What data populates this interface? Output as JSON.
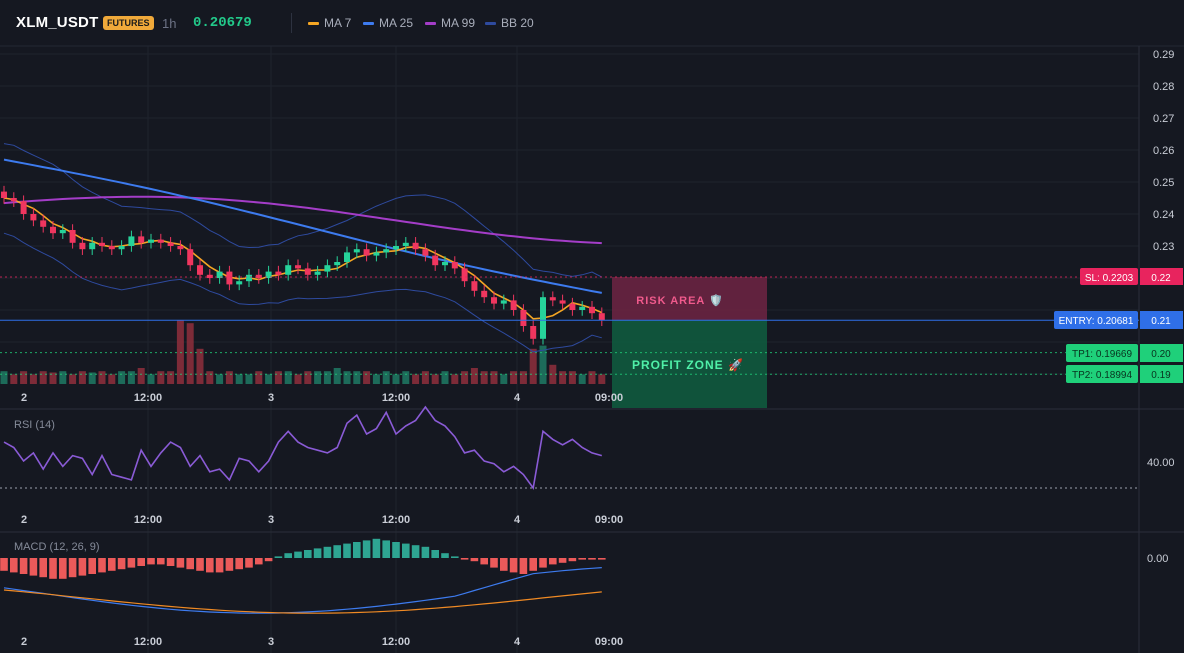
{
  "header": {
    "symbol": "XLM_USDT",
    "badge": "FUTURES",
    "interval": "1h",
    "price": "0.20679",
    "indicators": [
      {
        "label": "MA 7",
        "color": "#f5a623"
      },
      {
        "label": "MA 25",
        "color": "#3d7bef"
      },
      {
        "label": "MA 99",
        "color": "#a43dc8"
      },
      {
        "label": "BB 20",
        "color": "#2e4a9e"
      }
    ]
  },
  "price_axis": {
    "ticks": [
      "0.29",
      "0.28",
      "0.27",
      "0.26",
      "0.25",
      "0.24",
      "0.23",
      "0.22",
      "0.21",
      "0.20",
      "0.19"
    ]
  },
  "levels": {
    "sl": {
      "label": "SL: 0.2203",
      "axis": "0.22",
      "value": 0.2203,
      "color": "#e8245e"
    },
    "entry": {
      "label": "ENTRY: 0.20681",
      "axis": "0.21",
      "value": 0.20681,
      "color": "#2f6fe8"
    },
    "tp1": {
      "label": "TP1: 0.19669",
      "axis": "0.20",
      "value": 0.19669,
      "color": "#1fd07a"
    },
    "tp2": {
      "label": "TP2: 0.18994",
      "axis": "0.19",
      "value": 0.18994,
      "color": "#1fd07a"
    }
  },
  "zones": {
    "risk": "RISK AREA 🛡️",
    "profit": "PROFIT ZONE 🚀"
  },
  "time_axis": [
    "2",
    "12:00",
    "3",
    "12:00",
    "4",
    "09:00"
  ],
  "rsi": {
    "label": "RSI (14)",
    "tick": "40.00"
  },
  "macd": {
    "label": "MACD (12, 26, 9)",
    "tick": "0.00"
  },
  "chart_data": {
    "type": "candlestick",
    "title": "",
    "ylim": [
      0.185,
      0.292
    ],
    "series": [
      {
        "name": "MA 7"
      },
      {
        "name": "MA 25"
      },
      {
        "name": "MA 99"
      },
      {
        "name": "BB 20"
      }
    ],
    "closes": [
      0.245,
      0.244,
      0.24,
      0.238,
      0.236,
      0.234,
      0.235,
      0.231,
      0.229,
      0.231,
      0.23,
      0.229,
      0.23,
      0.233,
      0.231,
      0.232,
      0.231,
      0.23,
      0.229,
      0.224,
      0.221,
      0.22,
      0.222,
      0.218,
      0.219,
      0.221,
      0.22,
      0.222,
      0.221,
      0.224,
      0.223,
      0.221,
      0.222,
      0.224,
      0.225,
      0.228,
      0.229,
      0.227,
      0.228,
      0.229,
      0.23,
      0.231,
      0.229,
      0.227,
      0.224,
      0.225,
      0.223,
      0.219,
      0.216,
      0.214,
      0.212,
      0.213,
      0.21,
      0.205,
      0.201,
      0.214,
      0.213,
      0.212,
      0.21,
      0.211,
      0.209,
      0.2068
    ],
    "volumes": [
      0.2,
      0.15,
      0.2,
      0.15,
      0.2,
      0.18,
      0.2,
      0.15,
      0.2,
      0.18,
      0.2,
      0.15,
      0.2,
      0.2,
      0.25,
      0.15,
      0.2,
      0.2,
      1.0,
      0.95,
      0.55,
      0.2,
      0.15,
      0.2,
      0.15,
      0.15,
      0.2,
      0.15,
      0.2,
      0.2,
      0.15,
      0.2,
      0.2,
      0.2,
      0.25,
      0.2,
      0.2,
      0.2,
      0.15,
      0.2,
      0.15,
      0.2,
      0.15,
      0.2,
      0.15,
      0.2,
      0.15,
      0.2,
      0.25,
      0.2,
      0.2,
      0.15,
      0.2,
      0.2,
      0.55,
      0.6,
      0.3,
      0.2,
      0.2,
      0.15,
      0.2,
      0.15
    ],
    "rsi": [
      47,
      45,
      40,
      43,
      37,
      43,
      38,
      42,
      41,
      35,
      42,
      35,
      34,
      33,
      44,
      38,
      43,
      47,
      45,
      38,
      42,
      36,
      37,
      33,
      41,
      40,
      36,
      40,
      47,
      51,
      47,
      45,
      44,
      43,
      45,
      54,
      57,
      50,
      52,
      58,
      50,
      53,
      55,
      60,
      55,
      53,
      49,
      43,
      44,
      40,
      39,
      36,
      38,
      35,
      30,
      51,
      48,
      46,
      48,
      45,
      43,
      42
    ],
    "macd_hist": [
      -8,
      -9,
      -10,
      -11,
      -12,
      -13,
      -13,
      -12,
      -11,
      -10,
      -9,
      -8,
      -7,
      -6,
      -5,
      -4,
      -4,
      -5,
      -6,
      -7,
      -8,
      -9,
      -9,
      -8,
      -7,
      -6,
      -4,
      -2,
      1,
      3,
      4,
      5,
      6,
      7,
      8,
      9,
      10,
      11,
      12,
      11,
      10,
      9,
      8,
      7,
      5,
      3,
      1,
      -1,
      -2,
      -4,
      -6,
      -8,
      -9,
      -10,
      -8,
      -6,
      -4,
      -3,
      -2,
      -1,
      -1,
      -1
    ]
  }
}
